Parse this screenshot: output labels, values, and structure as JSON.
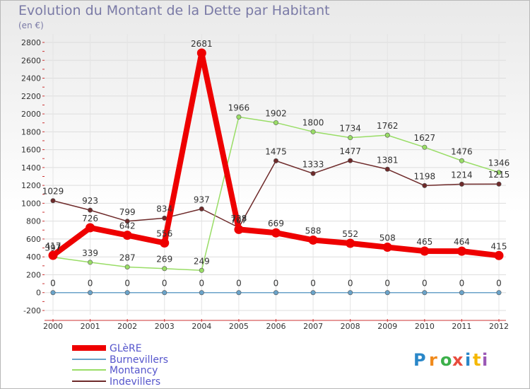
{
  "header": {
    "title": "Evolution du Montant de la Dette par Habitant",
    "subtitle": "(en €)"
  },
  "logo": {
    "text": "Proxiti",
    "colors": [
      "#2a87c8",
      "#f08a1c",
      "#3cb04a",
      "#e84c3d",
      "#2a87c8",
      "#f5b800",
      "#9b59b6"
    ]
  },
  "chart_data": {
    "type": "line",
    "title": "Evolution du Montant de la Dette par Habitant",
    "subtitle": "(en €)",
    "xlabel": "",
    "ylabel": "",
    "ylim": [
      -200,
      2800
    ],
    "yticks": [
      -200,
      0,
      200,
      400,
      600,
      800,
      1000,
      1200,
      1400,
      1600,
      1800,
      2000,
      2200,
      2400,
      2600,
      2800
    ],
    "x": [
      "2000",
      "2001",
      "2002",
      "2003",
      "2004",
      "2005",
      "2006",
      "2007",
      "2008",
      "2009",
      "2010",
      "2011",
      "2012"
    ],
    "grid": true,
    "legend_position": "bottom-left",
    "series": [
      {
        "name": "GLèRE",
        "color": "#ee0000",
        "width": 8,
        "values": [
          417,
          726,
          642,
          556,
          2681,
          707,
          669,
          588,
          552,
          508,
          465,
          464,
          415
        ]
      },
      {
        "name": "Burnevillers",
        "color": "#6aa3c9",
        "width": 1.5,
        "values": [
          0,
          0,
          0,
          0,
          0,
          0,
          0,
          0,
          0,
          0,
          0,
          0,
          0
        ]
      },
      {
        "name": "Montancy",
        "color": "#99dd66",
        "width": 1.5,
        "values": [
          397,
          339,
          287,
          269,
          249,
          1966,
          1902,
          1800,
          1734,
          1762,
          1627,
          1476,
          1346
        ]
      },
      {
        "name": "Indevillers",
        "color": "#6e2a2a",
        "width": 1.5,
        "values": [
          1029,
          923,
          799,
          834,
          937,
          728,
          1475,
          1333,
          1477,
          1381,
          1198,
          1214,
          1215
        ]
      }
    ]
  }
}
